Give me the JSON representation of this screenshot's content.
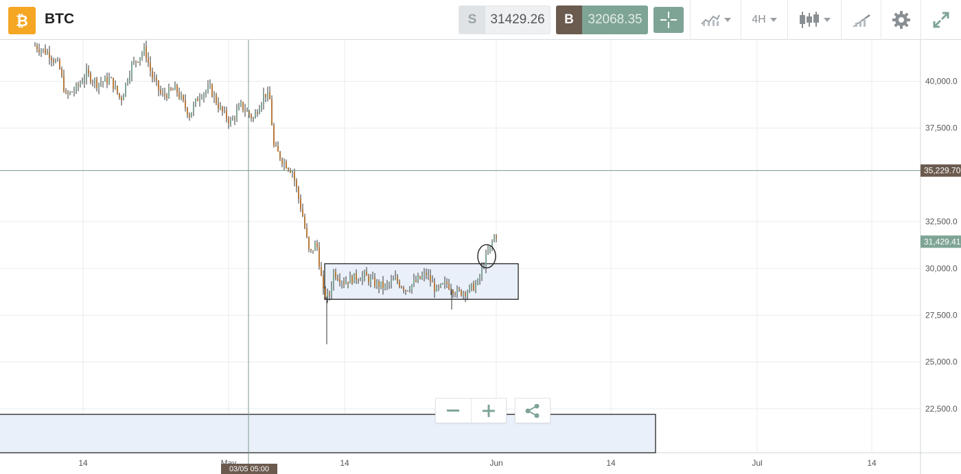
{
  "header": {
    "symbol": "BTC",
    "logo_icon": "bitcoin-logo-icon",
    "sell": {
      "tag": "S",
      "price": "31429.26"
    },
    "buy": {
      "tag": "B",
      "price": "32068.35"
    },
    "timeframe": "4H",
    "tools": [
      "crosshair-icon",
      "indicators-icon",
      "timeframe-dropdown",
      "candlestick-type-icon",
      "drawing-tools-icon",
      "gear-icon",
      "expand-icon"
    ]
  },
  "colors": {
    "up": "#7ea495",
    "down": "#b8793c",
    "accent": "#7ea495",
    "buy_tag": "#6b5a4e",
    "logo": "#f5a623"
  },
  "chart_data": {
    "type": "candlestick",
    "y_ticks": [
      "40,000.0",
      "37,500.0",
      "32,500.0",
      "30,000.0",
      "27,500.0",
      "25,000.0",
      "22,500.0"
    ],
    "y_tick_values": [
      40000,
      37500,
      32500,
      30000,
      27500,
      25000,
      22500
    ],
    "ylim": [
      21000,
      42200
    ],
    "x_ticks": [
      "14",
      "May",
      "14",
      "Jun",
      "14",
      "Jul",
      "14"
    ],
    "crosshair": {
      "price_label": "35,229.70",
      "price": 35229.7,
      "time_label": "03/05 05:00"
    },
    "current_price_label": "31,429.41",
    "current_price": 31429.41,
    "range_box": {
      "top": 30250,
      "bottom": 28350
    },
    "lower_box": {
      "top": 22200
    }
  }
}
